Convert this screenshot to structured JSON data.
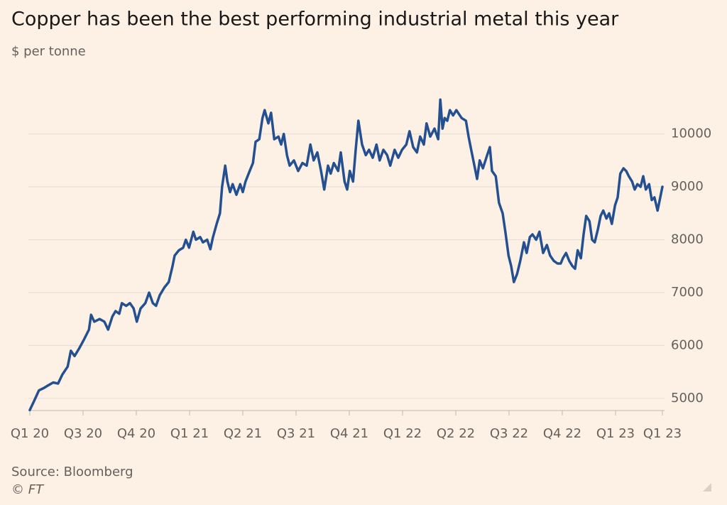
{
  "chart_data": {
    "type": "line",
    "title": "Copper has been the best performing industrial metal this year",
    "subtitle": "$ per tonne",
    "source": "Source: Bloomberg",
    "credit": "© FT",
    "color": "#24508f",
    "grid": true,
    "x": [
      0,
      0.08,
      0.17,
      0.27,
      0.35,
      0.44,
      0.53,
      0.61,
      0.71,
      0.77,
      0.84,
      0.93,
      1.01,
      1.11,
      1.15,
      1.21,
      1.31,
      1.4,
      1.47,
      1.55,
      1.61,
      1.68,
      1.73,
      1.81,
      1.88,
      1.95,
      2.01,
      2.08,
      2.17,
      2.24,
      2.31,
      2.37,
      2.44,
      2.53,
      2.61,
      2.68,
      2.72,
      2.8,
      2.88,
      2.93,
      2.99,
      3.07,
      3.12,
      3.2,
      3.25,
      3.33,
      3.39,
      3.44,
      3.51,
      3.57,
      3.61,
      3.67,
      3.71,
      3.76,
      3.81,
      3.88,
      3.95,
      4,
      4.05,
      4.13,
      4.19,
      4.24,
      4.31,
      4.37,
      4.41,
      4.48,
      4.53,
      4.59,
      4.67,
      4.72,
      4.77,
      4.83,
      4.88,
      4.96,
      5.04,
      5.12,
      5.2,
      5.27,
      5.33,
      5.4,
      5.47,
      5.53,
      5.6,
      5.65,
      5.71,
      5.79,
      5.84,
      5.91,
      5.96,
      6.01,
      6.07,
      6.12,
      6.17,
      6.24,
      6.31,
      6.37,
      6.44,
      6.51,
      6.57,
      6.64,
      6.71,
      6.77,
      6.85,
      6.92,
      6.99,
      7.07,
      7.13,
      7.2,
      7.27,
      7.33,
      7.4,
      7.45,
      7.52,
      7.6,
      7.67,
      7.71,
      7.75,
      7.79,
      7.84,
      7.89,
      7.95,
      8.01,
      8.11,
      8.19,
      8.24,
      8.29,
      8.35,
      8.4,
      8.45,
      8.51,
      8.59,
      8.64,
      8.68,
      8.75,
      8.81,
      8.88,
      8.93,
      8.99,
      9.04,
      9.09,
      9.15,
      9.21,
      9.28,
      9.33,
      9.39,
      9.44,
      9.51,
      9.57,
      9.64,
      9.71,
      9.77,
      9.84,
      9.91,
      9.97,
      10.01,
      10.07,
      10.13,
      10.19,
      10.24,
      10.29,
      10.35,
      10.4,
      10.45,
      10.51,
      10.56,
      10.61,
      10.67,
      10.72,
      10.77,
      10.83,
      10.88,
      10.93,
      10.99,
      11.04,
      11.09,
      11.15,
      11.2,
      11.25,
      11.31,
      11.36,
      11.41,
      11.47,
      11.52,
      11.57,
      11.63,
      11.68,
      11.73,
      11.79,
      11.84,
      11.88
    ],
    "values": [
      4780,
      4950,
      5150,
      5200,
      5250,
      5300,
      5280,
      5450,
      5600,
      5900,
      5800,
      5950,
      6100,
      6300,
      6580,
      6450,
      6500,
      6450,
      6300,
      6550,
      6650,
      6600,
      6800,
      6750,
      6800,
      6700,
      6450,
      6700,
      6800,
      7000,
      6800,
      6750,
      6950,
      7100,
      7200,
      7500,
      7700,
      7800,
      7850,
      8000,
      7850,
      8150,
      8000,
      8050,
      7950,
      8000,
      7820,
      8050,
      8300,
      8500,
      9000,
      9400,
      9100,
      8900,
      9050,
      8850,
      9050,
      8900,
      9100,
      9300,
      9450,
      9850,
      9900,
      10300,
      10450,
      10200,
      10400,
      9900,
      9950,
      9800,
      10000,
      9600,
      9400,
      9500,
      9300,
      9450,
      9400,
      9800,
      9500,
      9650,
      9300,
      8950,
      9400,
      9250,
      9450,
      9300,
      9650,
      9100,
      8950,
      9300,
      9100,
      9700,
      10250,
      9800,
      9600,
      9700,
      9550,
      9800,
      9500,
      9700,
      9600,
      9400,
      9700,
      9550,
      9700,
      9800,
      10050,
      9750,
      9650,
      9950,
      9800,
      10200,
      9950,
      10100,
      9900,
      10650,
      10100,
      10300,
      10250,
      10450,
      10350,
      10450,
      10300,
      10250,
      9950,
      9700,
      9400,
      9150,
      9500,
      9350,
      9600,
      9750,
      9300,
      9200,
      8700,
      8500,
      8150,
      7700,
      7500,
      7200,
      7350,
      7600,
      7950,
      7750,
      8050,
      8100,
      8000,
      8150,
      7750,
      7900,
      7700,
      7600,
      7550,
      7550,
      7650,
      7750,
      7600,
      7500,
      7450,
      7800,
      7650,
      8100,
      8450,
      8350,
      8000,
      7950,
      8200,
      8450,
      8550,
      8400,
      8500,
      8300,
      8650,
      8800,
      9250,
      9350,
      9300,
      9200,
      9100,
      8950,
      9050,
      9000,
      9200,
      8950,
      9050,
      8750,
      8800,
      8550,
      8800,
      9000
    ],
    "xlim": [
      0,
      11.88
    ],
    "xticks": [
      {
        "value": 0,
        "label": "Q1 20"
      },
      {
        "value": 1,
        "label": "Q3 20"
      },
      {
        "value": 2,
        "label": "Q4 20"
      },
      {
        "value": 3,
        "label": "Q1 21"
      },
      {
        "value": 4,
        "label": "Q2 21"
      },
      {
        "value": 5,
        "label": "Q3 21"
      },
      {
        "value": 6,
        "label": "Q4 21"
      },
      {
        "value": 7,
        "label": "Q1 22"
      },
      {
        "value": 8,
        "label": "Q2 22"
      },
      {
        "value": 9,
        "label": "Q3 22"
      },
      {
        "value": 10,
        "label": "Q4 22"
      },
      {
        "value": 11,
        "label": "Q1 23"
      },
      {
        "value": 11.88,
        "label": "Q1 23"
      }
    ],
    "ylim": [
      4770,
      10800
    ],
    "yticks": [
      5000,
      6000,
      7000,
      8000,
      9000,
      10000
    ]
  }
}
